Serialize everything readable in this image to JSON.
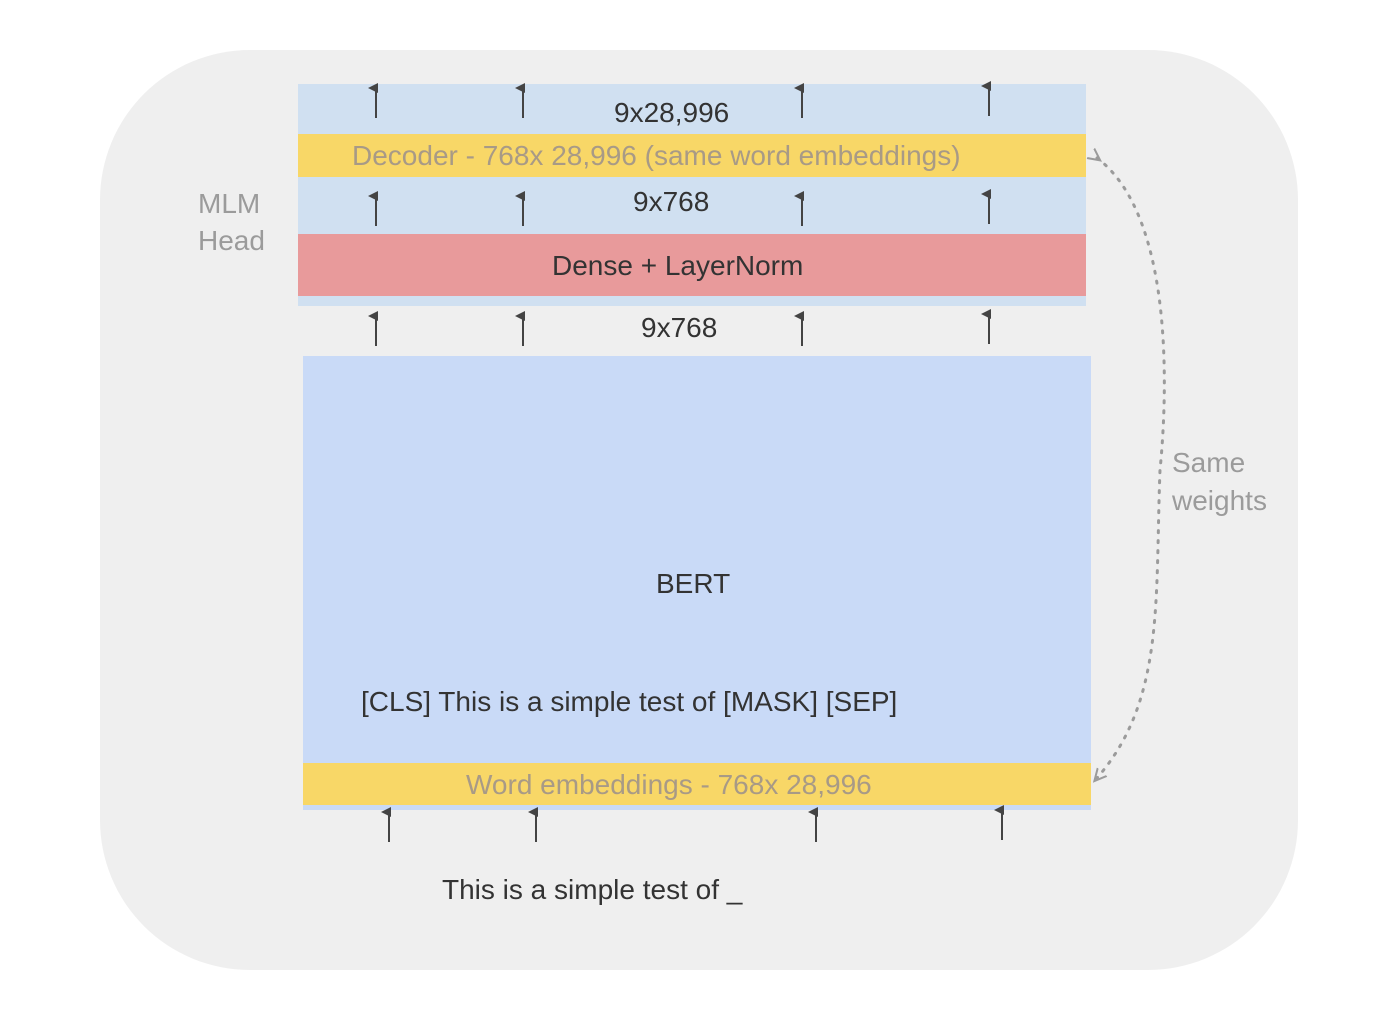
{
  "labels": {
    "mlm_head": [
      "MLM",
      "Head"
    ],
    "output_shape": "9x28,996",
    "decoder": "Decoder - 768x 28,996 (same word embeddings)",
    "hidden_shape_top": "9x768",
    "dense": "Dense + LayerNorm",
    "hidden_shape_bottom": "9x768",
    "bert": "BERT",
    "masked_sequence": "[CLS] This is a simple test of [MASK] [SEP]",
    "word_embeddings": "Word embeddings  - 768x 28,996",
    "input_sentence": "This is a simple test of _",
    "same_weights": [
      "Same",
      "weights"
    ]
  },
  "colors": {
    "panel": "#efefef",
    "light_blue": "#d0e0f1",
    "yellow": "#f8d767",
    "red": "#e89a9b",
    "bert_blue": "#c9daf7",
    "arrow": "#444444",
    "dotted_arrow": "#9b9b9b"
  }
}
